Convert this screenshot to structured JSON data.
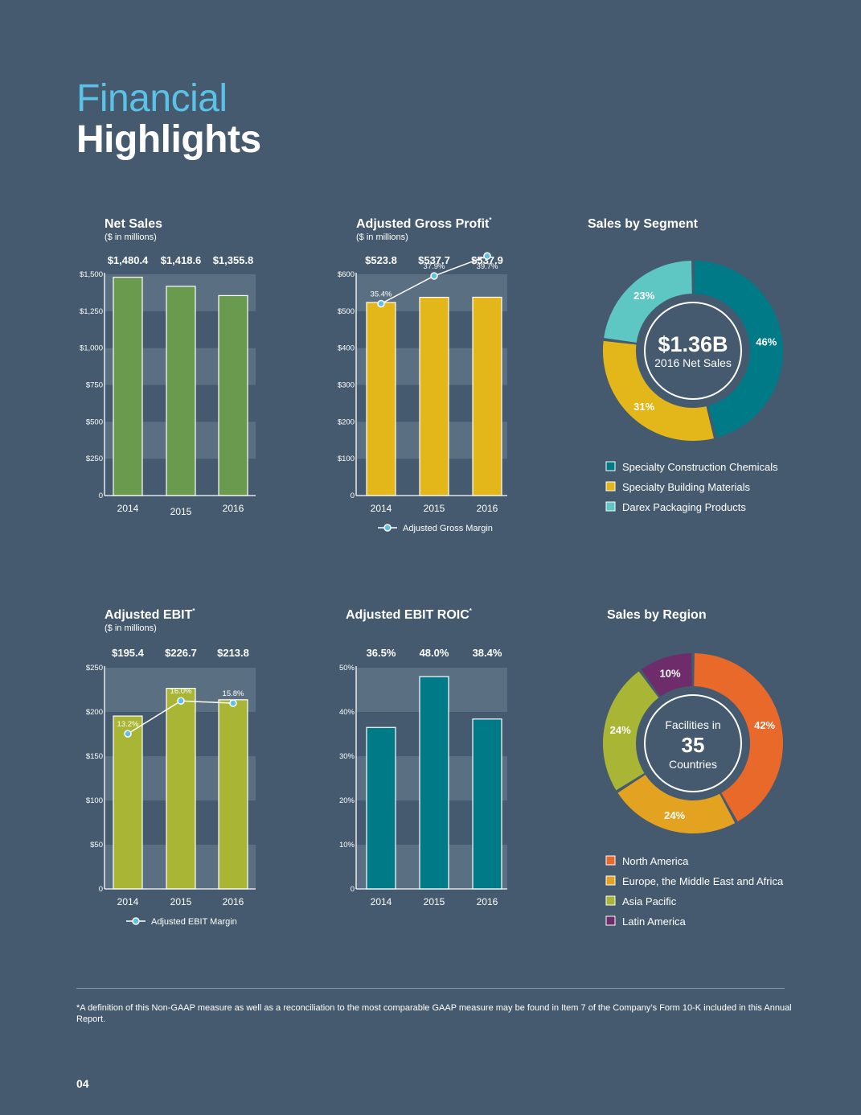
{
  "header": {
    "line1": "Financial",
    "line2": "Highlights"
  },
  "chart_data": [
    {
      "id": "net_sales",
      "type": "bar",
      "title": "Net Sales",
      "subtitle": "($ in millions)",
      "categories": [
        "2014",
        "2015",
        "2016"
      ],
      "values": [
        1480.4,
        1418.6,
        1355.8
      ],
      "value_labels": [
        "$1,480.4",
        "$1,418.6",
        "$1,355.8"
      ],
      "ylim": [
        0,
        1500
      ],
      "yticks": [
        0,
        250,
        500,
        750,
        1000,
        1250,
        1500
      ],
      "ytick_labels": [
        "0",
        "$250",
        "$500",
        "$750",
        "$1,000",
        "$1,250",
        "$1,500"
      ],
      "color": "#6a9a4e",
      "grid": "alternating bands"
    },
    {
      "id": "gross_profit",
      "type": "bar",
      "title": "Adjusted Gross Profit",
      "title_mark": "*",
      "subtitle": "($ in millions)",
      "categories": [
        "2014",
        "2015",
        "2016"
      ],
      "values": [
        523.8,
        537.7,
        537.9
      ],
      "value_labels": [
        "$523.8",
        "$537.7",
        "$537.9"
      ],
      "ylim": [
        0,
        600
      ],
      "yticks": [
        0,
        100,
        200,
        300,
        400,
        500,
        600
      ],
      "ytick_labels": [
        "0",
        "$100",
        "$200",
        "$300",
        "$400",
        "$500",
        "$600"
      ],
      "color": "#e3b719",
      "line": {
        "name": "Adjusted Gross Margin",
        "values": [
          35.4,
          37.9,
          39.7
        ],
        "labels": [
          "35.4%",
          "37.9%",
          "39.7%"
        ]
      }
    },
    {
      "id": "sales_by_segment",
      "type": "pie",
      "title": "Sales by Segment",
      "center_main": "$1.36B",
      "center_sub": "2016 Net Sales",
      "slices": [
        {
          "name": "Specialty Construction Chemicals",
          "value": 46,
          "label": "46%",
          "color": "#007a87"
        },
        {
          "name": "Specialty Building Materials",
          "value": 31,
          "label": "31%",
          "color": "#e3b719"
        },
        {
          "name": "Darex Packaging Products",
          "value": 23,
          "label": "23%",
          "color": "#5ec6c3"
        }
      ]
    },
    {
      "id": "ebit",
      "type": "bar",
      "title": "Adjusted EBIT",
      "title_mark": "*",
      "subtitle": "($ in millions)",
      "categories": [
        "2014",
        "2015",
        "2016"
      ],
      "values": [
        195.4,
        226.7,
        213.8
      ],
      "value_labels": [
        "$195.4",
        "$226.7",
        "$213.8"
      ],
      "ylim": [
        0,
        250
      ],
      "yticks": [
        0,
        50,
        100,
        150,
        200,
        250
      ],
      "ytick_labels": [
        "0",
        "$50",
        "$100",
        "$150",
        "$200",
        "$250"
      ],
      "color": "#a9b534",
      "line": {
        "name": "Adjusted EBIT Margin",
        "values": [
          13.2,
          16.0,
          15.8
        ],
        "labels": [
          "13.2%",
          "16.0%",
          "15.8%"
        ]
      }
    },
    {
      "id": "roic",
      "type": "bar",
      "title": "Adjusted EBIT ROIC",
      "title_mark": "*",
      "subtitle": "",
      "categories": [
        "2014",
        "2015",
        "2016"
      ],
      "values": [
        36.5,
        48.0,
        38.4
      ],
      "value_labels": [
        "36.5%",
        "48.0%",
        "38.4%"
      ],
      "ylim": [
        0,
        50
      ],
      "yticks": [
        0,
        10,
        20,
        30,
        40,
        50
      ],
      "ytick_labels": [
        "0",
        "10%",
        "20%",
        "30%",
        "40%",
        "50%"
      ],
      "color": "#007a87"
    },
    {
      "id": "sales_by_region",
      "type": "pie",
      "title": "Sales by Region",
      "center_top": "Facilities in",
      "center_main": "35",
      "center_sub": "Countries",
      "slices": [
        {
          "name": "North America",
          "value": 42,
          "label": "42%",
          "color": "#e8692a"
        },
        {
          "name": "Europe, the Middle East and Africa",
          "value": 24,
          "label": "24%",
          "color": "#e3a321"
        },
        {
          "name": "Asia Pacific",
          "value": 24,
          "label": "24%",
          "color": "#a9b534"
        },
        {
          "name": "Latin America",
          "value": 10,
          "label": "10%",
          "color": "#6e2c6b"
        }
      ]
    }
  ],
  "footnote": "*A definition of this Non-GAAP measure as well as a reconciliation to the most comparable GAAP measure may be found in Item 7 of the Company’s Form 10-K included in this Annual Report.",
  "page_number": "04"
}
